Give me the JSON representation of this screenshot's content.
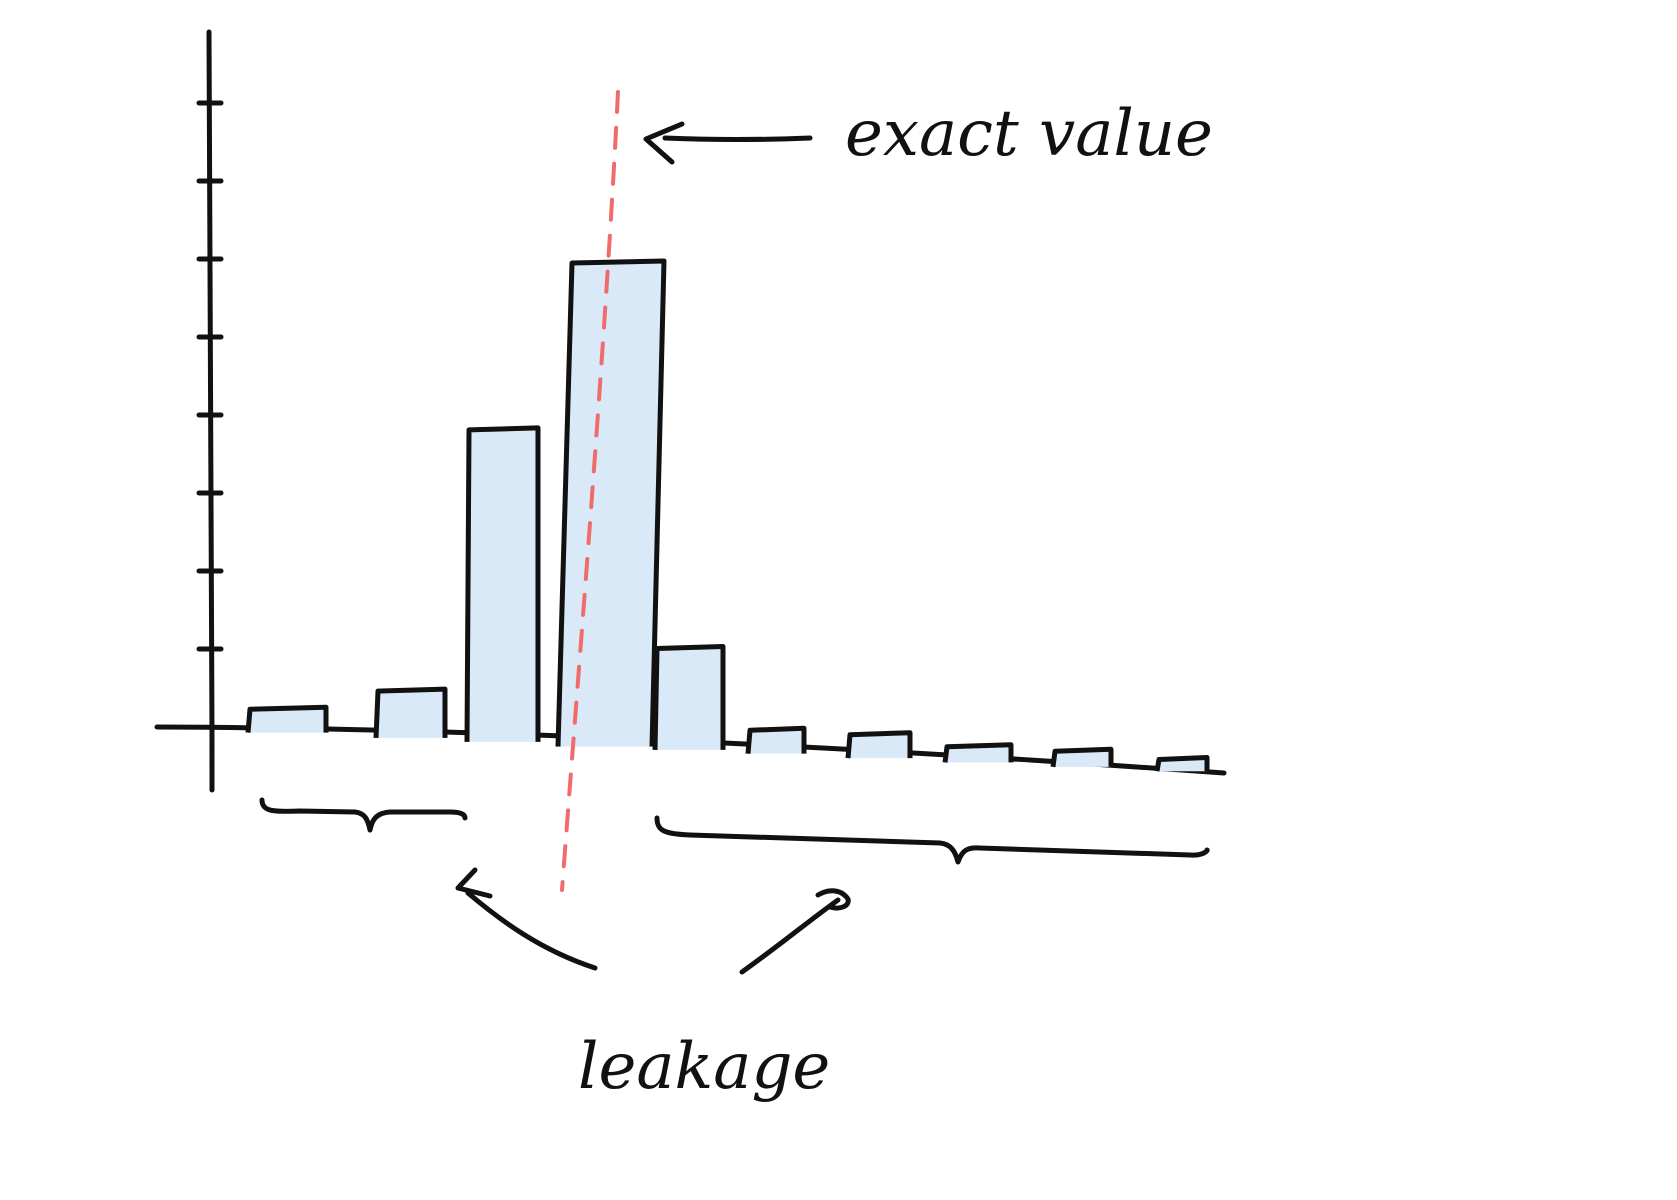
{
  "annotations": {
    "exact_value": "exact value",
    "leakage": "leakage"
  },
  "chart_data": {
    "type": "bar",
    "title": "",
    "xlabel": "",
    "ylabel": "",
    "y_ticks": 8,
    "ylim": [
      0,
      8.7
    ],
    "values": [
      0.3,
      0.6,
      4.0,
      6.2,
      1.3,
      0.3,
      0.3,
      0.2,
      0.2,
      0.15
    ],
    "highlighted_index": 3,
    "exact_value_marker": "dashed vertical line through the tallest bar",
    "leakage_groups": [
      [
        0,
        1
      ],
      [
        4,
        5,
        6,
        7,
        8,
        9
      ]
    ]
  },
  "colors": {
    "bar_fill": "#d9e9f8",
    "ink": "#111111",
    "exact_value_line": "#f06b6b"
  }
}
